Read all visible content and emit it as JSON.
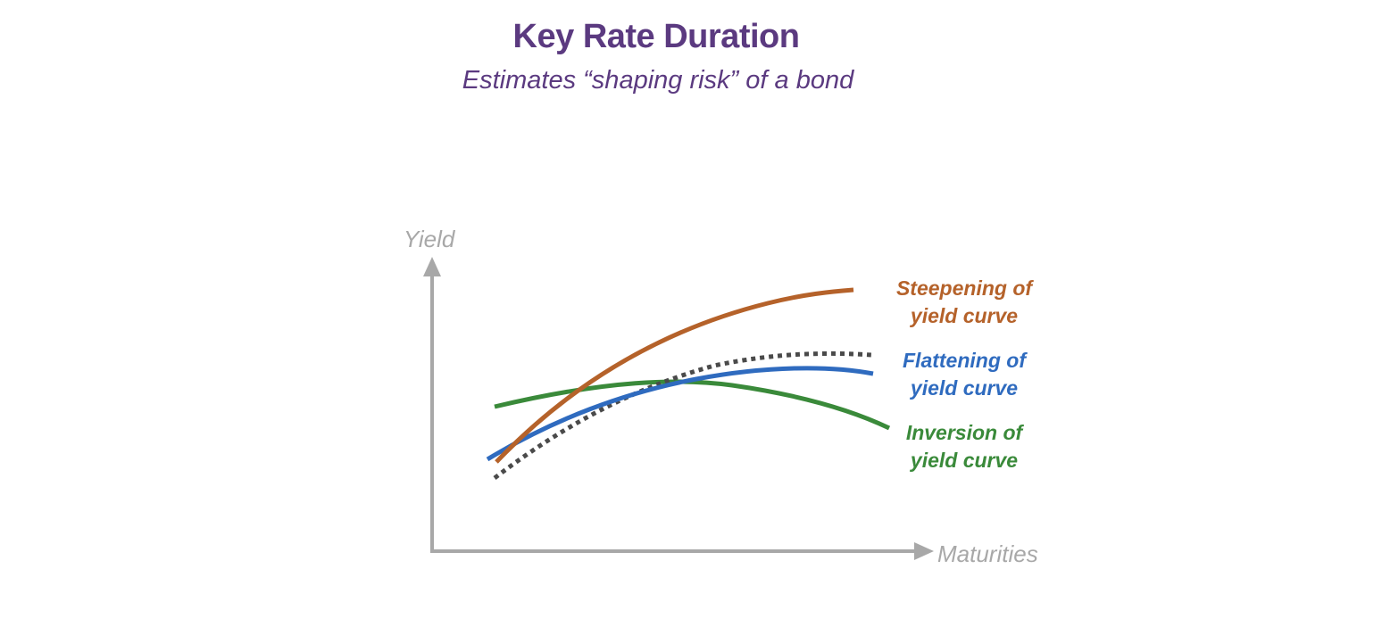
{
  "title": "Key Rate Duration",
  "subtitle": "Estimates “shaping risk” of a bond",
  "axes": {
    "y_label": "Yield",
    "x_label": "Maturities"
  },
  "curves": {
    "original": {
      "style": "dotted",
      "color": "#4a4a4a"
    },
    "steepening": {
      "label_line1": "Steepening of",
      "label_line2": "yield curve",
      "color": "#b5622a"
    },
    "flattening": {
      "label_line1": "Flattening of",
      "label_line2": "yield curve",
      "color": "#2f6bbf"
    },
    "inversion": {
      "label_line1": "Inversion of",
      "label_line2": "yield curve",
      "color": "#3a8a3a"
    }
  },
  "colors": {
    "title": "#5b3a80",
    "axis": "#a8a8a8"
  }
}
